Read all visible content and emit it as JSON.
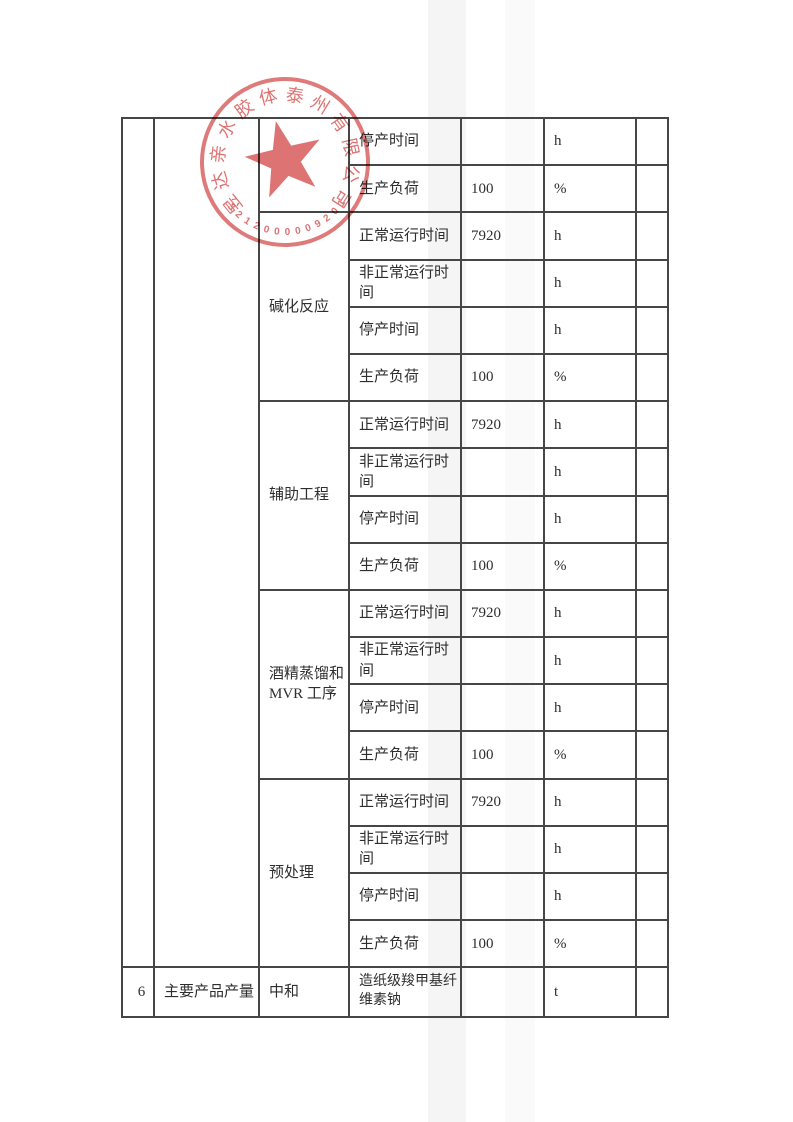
{
  "stamp": {
    "company": "昱达亲水胶体泰州有限公司",
    "serial": "3212000009201",
    "color": "#d85f5f",
    "star_icon": "five-pointed-star"
  },
  "table": {
    "sections": [
      {
        "label": "",
        "rows": [
          {
            "metric": "停产时间",
            "value": "",
            "unit": "h"
          },
          {
            "metric": "生产负荷",
            "value": "100",
            "unit": "%"
          }
        ]
      },
      {
        "label": "碱化反应",
        "rows": [
          {
            "metric": "正常运行时间",
            "value": "7920",
            "unit": "h"
          },
          {
            "metric": "非正常运行时间",
            "value": "",
            "unit": "h"
          },
          {
            "metric": "停产时间",
            "value": "",
            "unit": "h"
          },
          {
            "metric": "生产负荷",
            "value": "100",
            "unit": "%"
          }
        ]
      },
      {
        "label": "辅助工程",
        "rows": [
          {
            "metric": "正常运行时间",
            "value": "7920",
            "unit": "h"
          },
          {
            "metric": "非正常运行时间",
            "value": "",
            "unit": "h"
          },
          {
            "metric": "停产时间",
            "value": "",
            "unit": "h"
          },
          {
            "metric": "生产负荷",
            "value": "100",
            "unit": "%"
          }
        ]
      },
      {
        "label": "酒精蒸馏和\nMVR 工序",
        "rows": [
          {
            "metric": "正常运行时间",
            "value": "7920",
            "unit": "h"
          },
          {
            "metric": "非正常运行时间",
            "value": "",
            "unit": "h"
          },
          {
            "metric": "停产时间",
            "value": "",
            "unit": "h"
          },
          {
            "metric": "生产负荷",
            "value": "100",
            "unit": "%"
          }
        ]
      },
      {
        "label": "预处理",
        "rows": [
          {
            "metric": "正常运行时间",
            "value": "7920",
            "unit": "h"
          },
          {
            "metric": "非正常运行时间",
            "value": "",
            "unit": "h"
          },
          {
            "metric": "停产时间",
            "value": "",
            "unit": "h"
          },
          {
            "metric": "生产负荷",
            "value": "100",
            "unit": "%"
          }
        ]
      }
    ],
    "product_row": {
      "index": "6",
      "category": "主要产品产量",
      "process": "中和",
      "product": "造纸级羧甲基纤\n维素钠",
      "value": "",
      "unit": "t"
    }
  }
}
